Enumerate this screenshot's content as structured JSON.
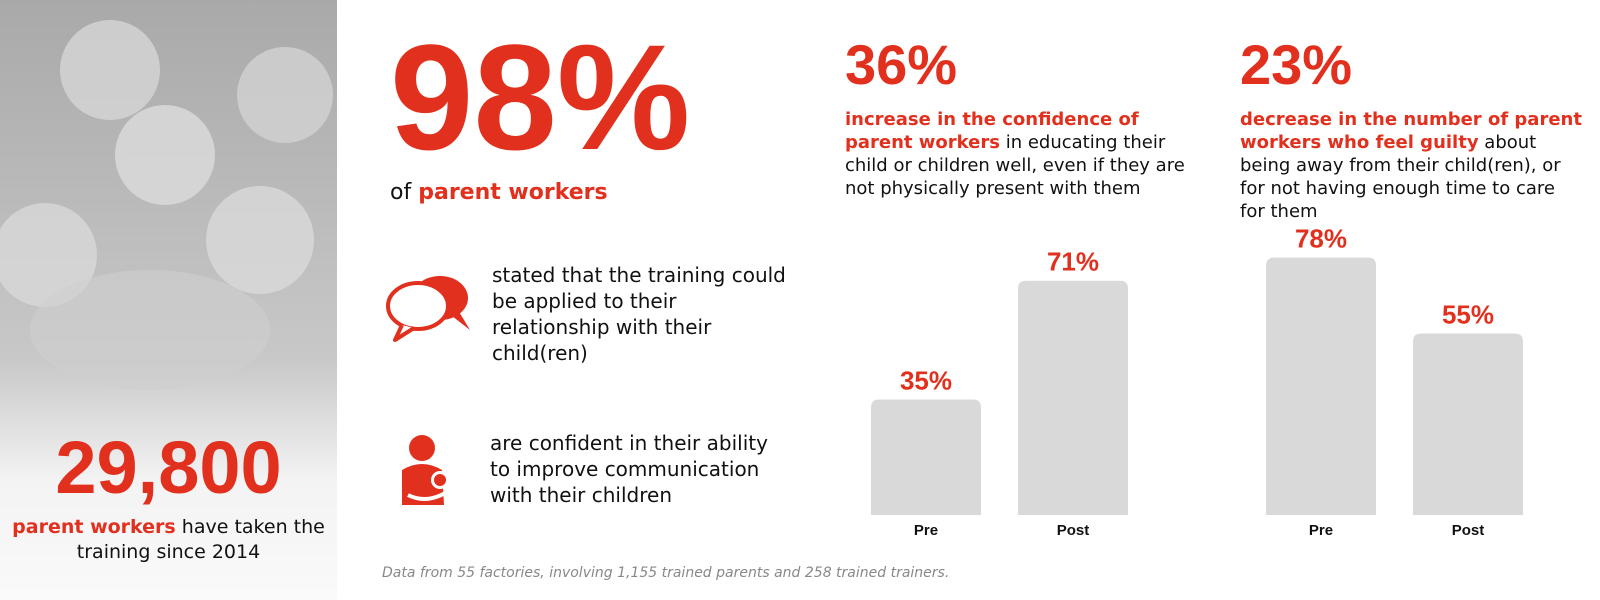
{
  "left_panel": {
    "number": "29,800",
    "caption_highlight": "parent workers",
    "caption_rest": "have taken the training since 2014"
  },
  "headline": {
    "number": "98%",
    "prefix": "of",
    "highlight": "parent workers"
  },
  "items": [
    {
      "text": "stated that the training could be applied to their relationship with their child(ren)"
    },
    {
      "text": "are confident in their ability to improve communication with their children"
    }
  ],
  "footnote": "Data from 55 factories, involving 1,155 trained parents and 258 trained trainers.",
  "chart_data": [
    {
      "type": "bar",
      "title": "36%",
      "subtitle_highlight": "increase in the confidence of parent workers",
      "subtitle": "in educating their child or children well, even if they are not physically present with them",
      "categories": [
        "Pre",
        "Post"
      ],
      "values": [
        35,
        71
      ],
      "value_labels": [
        "35%",
        "71%"
      ],
      "color": "#d9d9d9",
      "label_color": "#e2301f"
    },
    {
      "type": "bar",
      "title": "23%",
      "subtitle_highlight": "decrease in the number of parent workers who feel guilty",
      "subtitle": "about being away from their child(ren), or for not having enough time to care for them",
      "categories": [
        "Pre",
        "Post"
      ],
      "values": [
        78,
        55
      ],
      "value_labels": [
        "78%",
        "55%"
      ],
      "color": "#d9d9d9",
      "label_color": "#e2301f"
    }
  ]
}
